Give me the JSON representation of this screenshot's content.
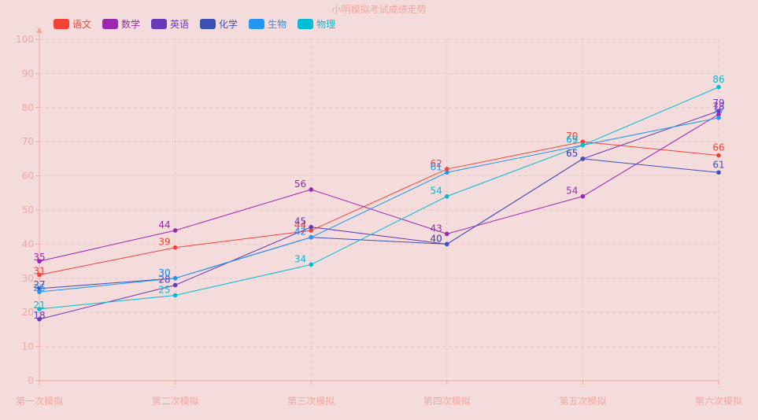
{
  "chart_data": {
    "type": "line",
    "title": "小明模拟考试成绩走势",
    "categories": [
      "第一次模拟",
      "第二次模拟",
      "第三次模拟",
      "第四次模拟",
      "第五次模拟",
      "第六次模拟"
    ],
    "ylim": [
      0,
      100
    ],
    "yticks": [
      0,
      10,
      20,
      30,
      40,
      50,
      60,
      70,
      80,
      90,
      100
    ],
    "grid": true,
    "legend_position": "top-left",
    "series": [
      {
        "name": "语文",
        "color": "#f44336",
        "values": [
          31,
          39,
          44,
          62,
          70,
          66
        ]
      },
      {
        "name": "数学",
        "color": "#9c27b0",
        "values": [
          35,
          44,
          56,
          43,
          54,
          78
        ]
      },
      {
        "name": "英语",
        "color": "#673ab7",
        "values": [
          18,
          28,
          45,
          40,
          65,
          79
        ]
      },
      {
        "name": "化学",
        "color": "#3f51b5",
        "values": [
          27,
          30,
          42,
          40,
          65,
          61
        ]
      },
      {
        "name": "生物",
        "color": "#2196f3",
        "values": [
          26,
          30,
          42,
          61,
          69,
          77
        ]
      },
      {
        "name": "物理",
        "color": "#00bcd4",
        "values": [
          21,
          25,
          34,
          54,
          69,
          86
        ]
      }
    ]
  },
  "colors": {
    "axis": "#f0a7a0",
    "grid": "#ecc6c3",
    "background": "#f5dcdc"
  }
}
